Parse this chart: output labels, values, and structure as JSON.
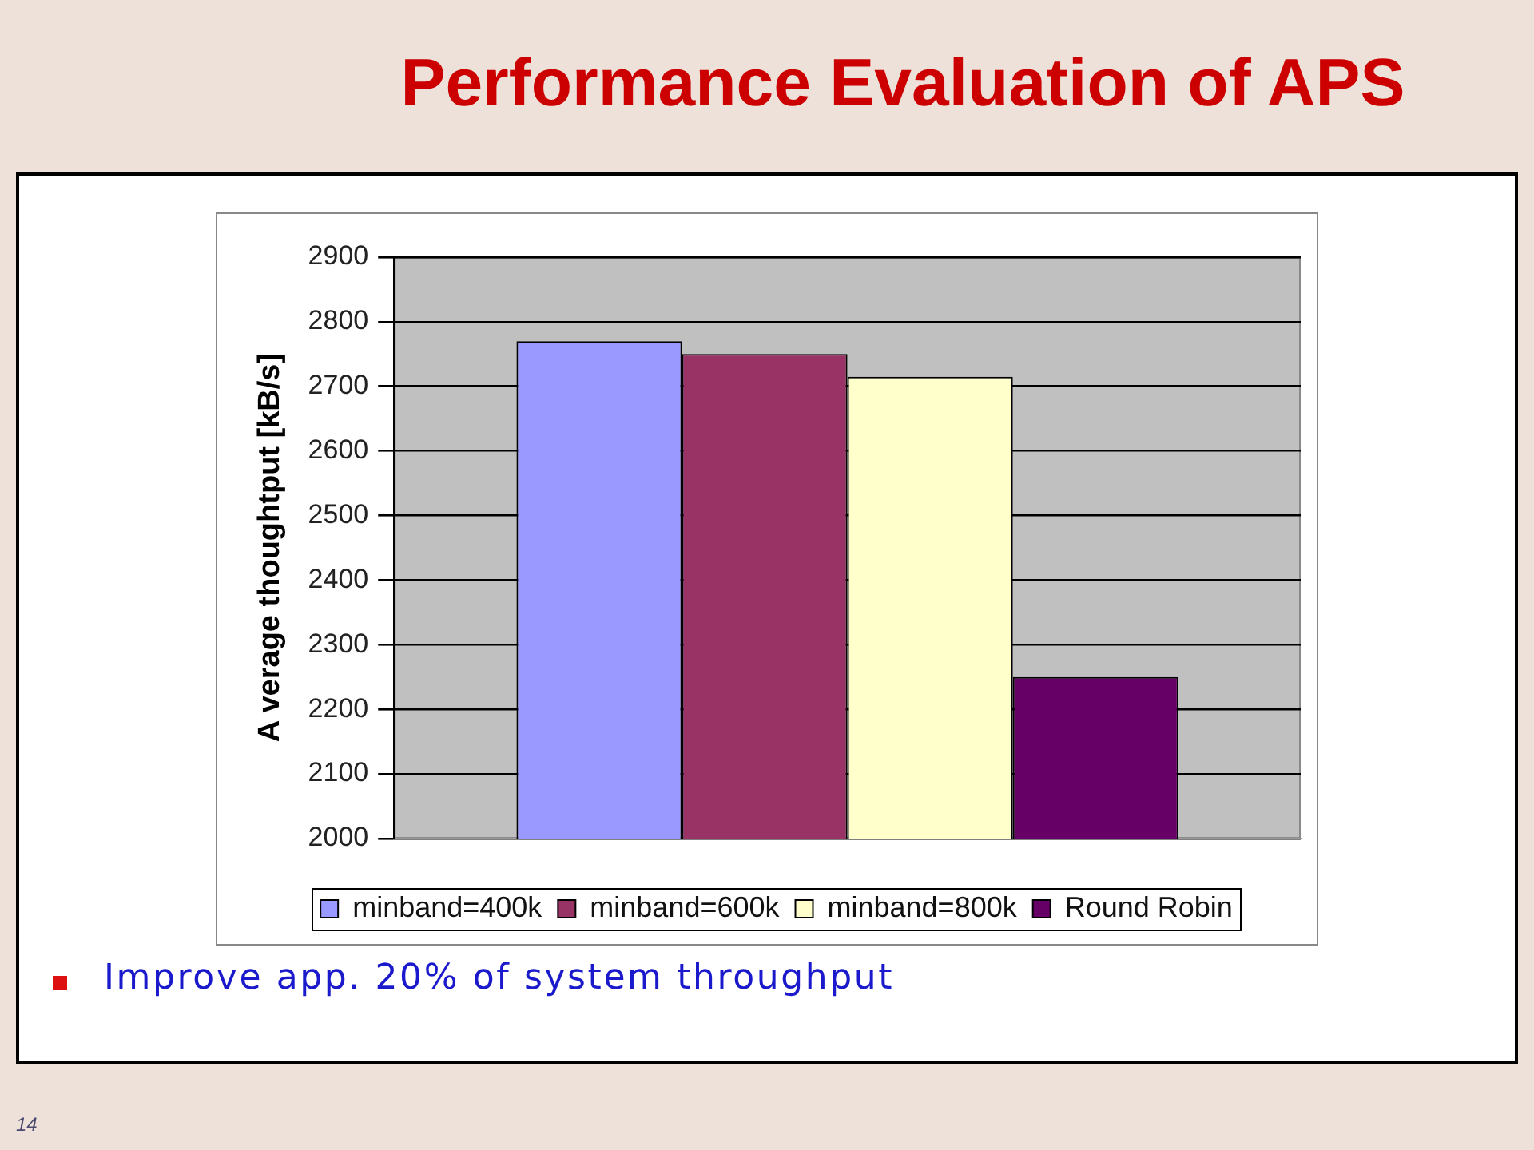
{
  "chart_data": {
    "type": "bar",
    "title": "Performance Evaluation of APS",
    "ylabel": "A verage thoughtput [kB/s]",
    "categories": [
      null
    ],
    "series": [
      {
        "name": "minband=400k",
        "color": "#9999ff",
        "values": [
          2770
        ]
      },
      {
        "name": "minband=600k",
        "color": "#993366",
        "values": [
          2750
        ]
      },
      {
        "name": "minband=800k",
        "color": "#ffffcc",
        "values": [
          2715
        ]
      },
      {
        "name": "Round Robin",
        "color": "#660066",
        "values": [
          2250
        ]
      }
    ],
    "ylim": [
      2000,
      2900
    ],
    "yticks": [
      2000,
      2100,
      2200,
      2300,
      2400,
      2500,
      2600,
      2700,
      2800,
      2900
    ],
    "grid": "y",
    "legend": "bottom",
    "annotations": [
      "Improve app. 20% of system throughput",
      "14"
    ]
  }
}
